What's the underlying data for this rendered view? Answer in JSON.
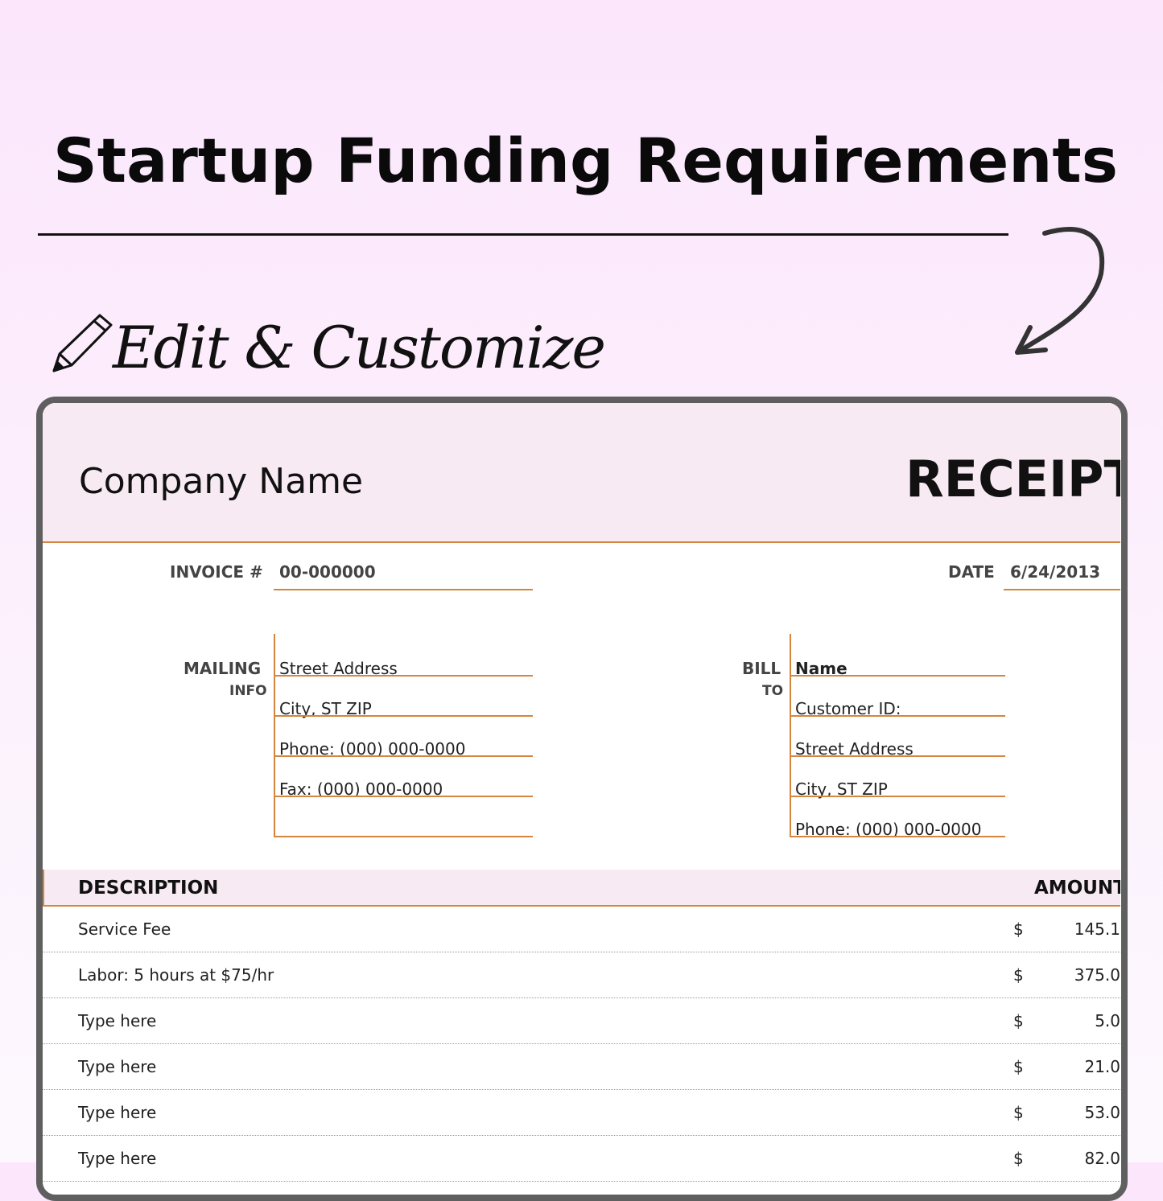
{
  "headline": "Startup Funding Requirements",
  "subheadline": "Edit & Customize",
  "icons": {
    "pencil": "pencil-icon",
    "arrow": "curved-arrow-icon"
  },
  "colors": {
    "accent": "#d4853f",
    "header_bg": "#f8eaf3",
    "frame": "#5f5f5f"
  },
  "receipt": {
    "company": "Company Name",
    "title": "RECEIPT",
    "invoice_label": "INVOICE #",
    "invoice_value": "00-000000",
    "date_label": "DATE",
    "date_value": "6/24/2013",
    "mailing": {
      "label1": "MAILING",
      "label2": "INFO",
      "lines": [
        "Street Address",
        "City, ST  ZIP",
        "Phone: (000) 000-0000",
        "Fax: (000) 000-0000",
        ""
      ]
    },
    "bill": {
      "label1": "BILL",
      "label2": "TO",
      "lines": [
        "Name",
        "Customer ID:",
        "Street Address",
        "City, ST  ZIP",
        "Phone: (000) 000-0000"
      ]
    },
    "table": {
      "headers": {
        "description": "DESCRIPTION",
        "amount": "AMOUNT"
      },
      "rows": [
        {
          "desc": "Service Fee",
          "currency": "$",
          "amount": "145.1"
        },
        {
          "desc": "Labor: 5 hours at $75/hr",
          "currency": "$",
          "amount": "375.0"
        },
        {
          "desc": "Type here",
          "currency": "$",
          "amount": "5.0"
        },
        {
          "desc": "Type here",
          "currency": "$",
          "amount": "21.0"
        },
        {
          "desc": "Type here",
          "currency": "$",
          "amount": "53.0"
        },
        {
          "desc": "Type here",
          "currency": "$",
          "amount": "82.0"
        }
      ]
    }
  }
}
